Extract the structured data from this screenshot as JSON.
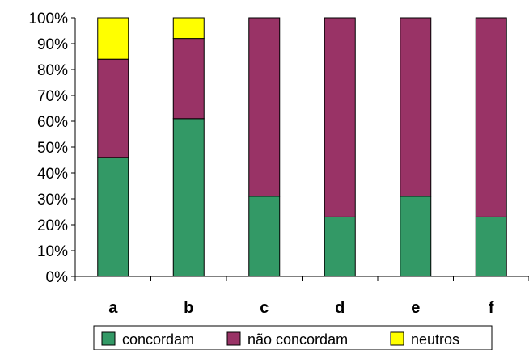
{
  "chart_data": {
    "type": "bar",
    "stacked": "percent",
    "categories": [
      "a",
      "b",
      "c",
      "d",
      "e",
      "f"
    ],
    "series": [
      {
        "name": "concordam",
        "values": [
          46,
          61,
          31,
          23,
          31,
          23
        ],
        "color": "#339966"
      },
      {
        "name": "não concordam",
        "values": [
          38,
          31,
          69,
          77,
          69,
          77
        ],
        "color": "#993366"
      },
      {
        "name": "neutros",
        "values": [
          16,
          8,
          0,
          0,
          0,
          0
        ],
        "color": "#ffff00"
      }
    ],
    "ylim": [
      0,
      100
    ],
    "yticks": [
      "0%",
      "10%",
      "20%",
      "30%",
      "40%",
      "50%",
      "60%",
      "70%",
      "80%",
      "90%",
      "100%"
    ],
    "grid": false,
    "legend_position": "bottom"
  }
}
